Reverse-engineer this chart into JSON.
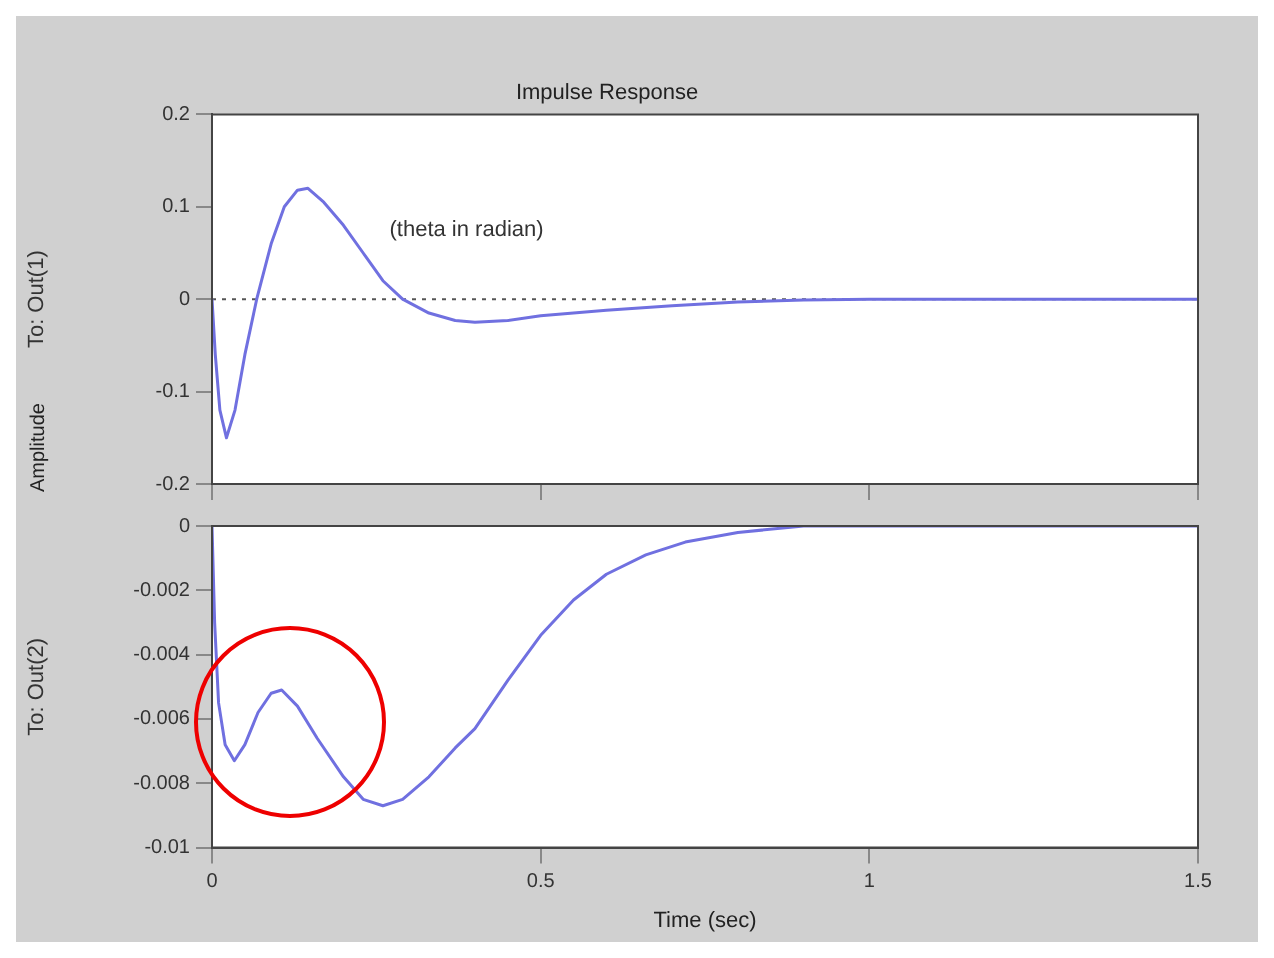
{
  "chart_data": [
    {
      "type": "line",
      "title": "Impulse Response",
      "ylabel": "To: Out(1)",
      "annotations": [
        "(theta in radian)"
      ],
      "series": [
        {
          "color": "#7070e0",
          "x": [
            0,
            0.005,
            0.012,
            0.022,
            0.035,
            0.05,
            0.068,
            0.09,
            0.11,
            0.13,
            0.146,
            0.17,
            0.2,
            0.23,
            0.26,
            0.29,
            0.33,
            0.37,
            0.4,
            0.45,
            0.5,
            0.6,
            0.7,
            0.8,
            0.9,
            1.0,
            1.5
          ],
          "values": [
            0,
            -0.06,
            -0.12,
            -0.15,
            -0.12,
            -0.06,
            0,
            0.06,
            0.1,
            0.118,
            0.12,
            0.105,
            0.08,
            0.05,
            0.02,
            0,
            -0.015,
            -0.023,
            -0.025,
            -0.023,
            -0.018,
            -0.012,
            -0.007,
            -0.003,
            -0.001,
            0,
            0
          ]
        }
      ],
      "xlim": [
        0,
        1.5
      ],
      "xticks": [
        0,
        0.5,
        1,
        1.5
      ],
      "ylim": [
        -0.2,
        0.2
      ],
      "yticks": [
        -0.2,
        -0.1,
        0,
        0.1,
        0.2
      ],
      "tick_labels": "y",
      "ref_lines": [
        {
          "axis": "y",
          "value": 0,
          "line_style": "dotted",
          "color": "#555555"
        }
      ],
      "grid": false,
      "legend": false
    },
    {
      "type": "line",
      "xlabel": "Time (sec)",
      "ylabel": "To: Out(2)",
      "annotations": [
        "Amplitude"
      ],
      "series": [
        {
          "color": "#7070e0",
          "x": [
            0,
            0.004,
            0.01,
            0.02,
            0.034,
            0.05,
            0.07,
            0.09,
            0.106,
            0.13,
            0.16,
            0.2,
            0.23,
            0.26,
            0.29,
            0.33,
            0.37,
            0.4,
            0.45,
            0.5,
            0.55,
            0.6,
            0.66,
            0.72,
            0.8,
            0.9,
            1.5
          ],
          "values": [
            0,
            -0.003,
            -0.0055,
            -0.0068,
            -0.0073,
            -0.0068,
            -0.0058,
            -0.0052,
            -0.0051,
            -0.0056,
            -0.0066,
            -0.0078,
            -0.0085,
            -0.0087,
            -0.0085,
            -0.0078,
            -0.0069,
            -0.0063,
            -0.0048,
            -0.0034,
            -0.0023,
            -0.0015,
            -0.0009,
            -0.0005,
            -0.0002,
            0,
            0
          ]
        }
      ],
      "xlim": [
        0,
        1.5
      ],
      "xticks": [
        0,
        0.5,
        1,
        1.5
      ],
      "ylim": [
        -0.01,
        0
      ],
      "yticks": [
        -0.01,
        -0.008,
        -0.006,
        -0.004,
        -0.002,
        0
      ],
      "grid": false,
      "legend": false
    }
  ]
}
